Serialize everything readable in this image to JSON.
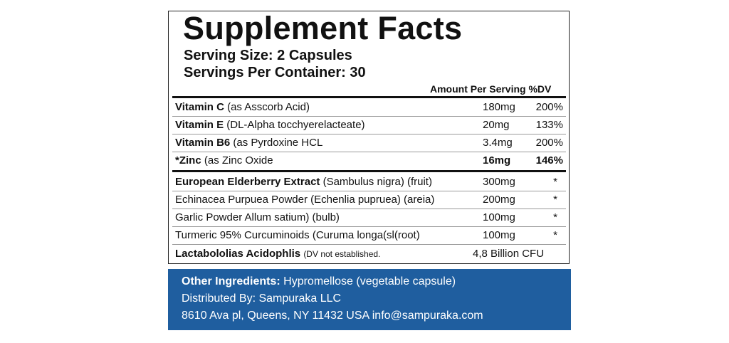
{
  "label": {
    "title": "Supplement Facts",
    "serving_size": "Serving Size: 2 Capsules",
    "servings_per_container": "Servings Per Container: 30",
    "column_header": "Amount Per Serving %DV",
    "rows": [
      {
        "name": "Vitamin C",
        "desc": "(as Asscorb Acid)",
        "amount": "180mg",
        "dv": "200%"
      },
      {
        "name": "Vitamin E",
        "desc": "(DL-Alpha tocchyerelacteate)",
        "amount": "20mg",
        "dv": "133%"
      },
      {
        "name": "Vitamin B6",
        "desc": "(as Pyrdoxine HCL",
        "amount": "3.4mg",
        "dv": "200%"
      },
      {
        "name": "*Zinc",
        "desc": "(as Zinc Oxide",
        "amount": "16mg",
        "dv": "146%"
      },
      {
        "name": "European Elderberry Extract",
        "desc": "(Sambulus nigra) (fruit)",
        "amount": "300mg",
        "dv": "*"
      },
      {
        "desc": "Echinacea Purpuea Powder (Echenlia pupruea) (areia)",
        "amount": "200mg",
        "dv": "*"
      },
      {
        "desc": "Garlic Powder Allum satium) (bulb)",
        "amount": "100mg",
        "dv": "*"
      },
      {
        "desc": "Turmeric 95% Curcuminoids (Curuma longa(sl(root)",
        "amount": "100mg",
        "dv": "*"
      },
      {
        "name": "Lactabololias Acidophlis",
        "note": "(DV not established.",
        "amount": "4,8 Billion CFU"
      }
    ]
  },
  "footer": {
    "other_label": "Other Ingredients:",
    "other_text": "Hypromellose (vegetable capsule)",
    "distributed": "Distributed By: Sampuraka LLC",
    "address": "8610 Ava pl, Queens, NY 11432 USA info@sampuraka.com"
  }
}
